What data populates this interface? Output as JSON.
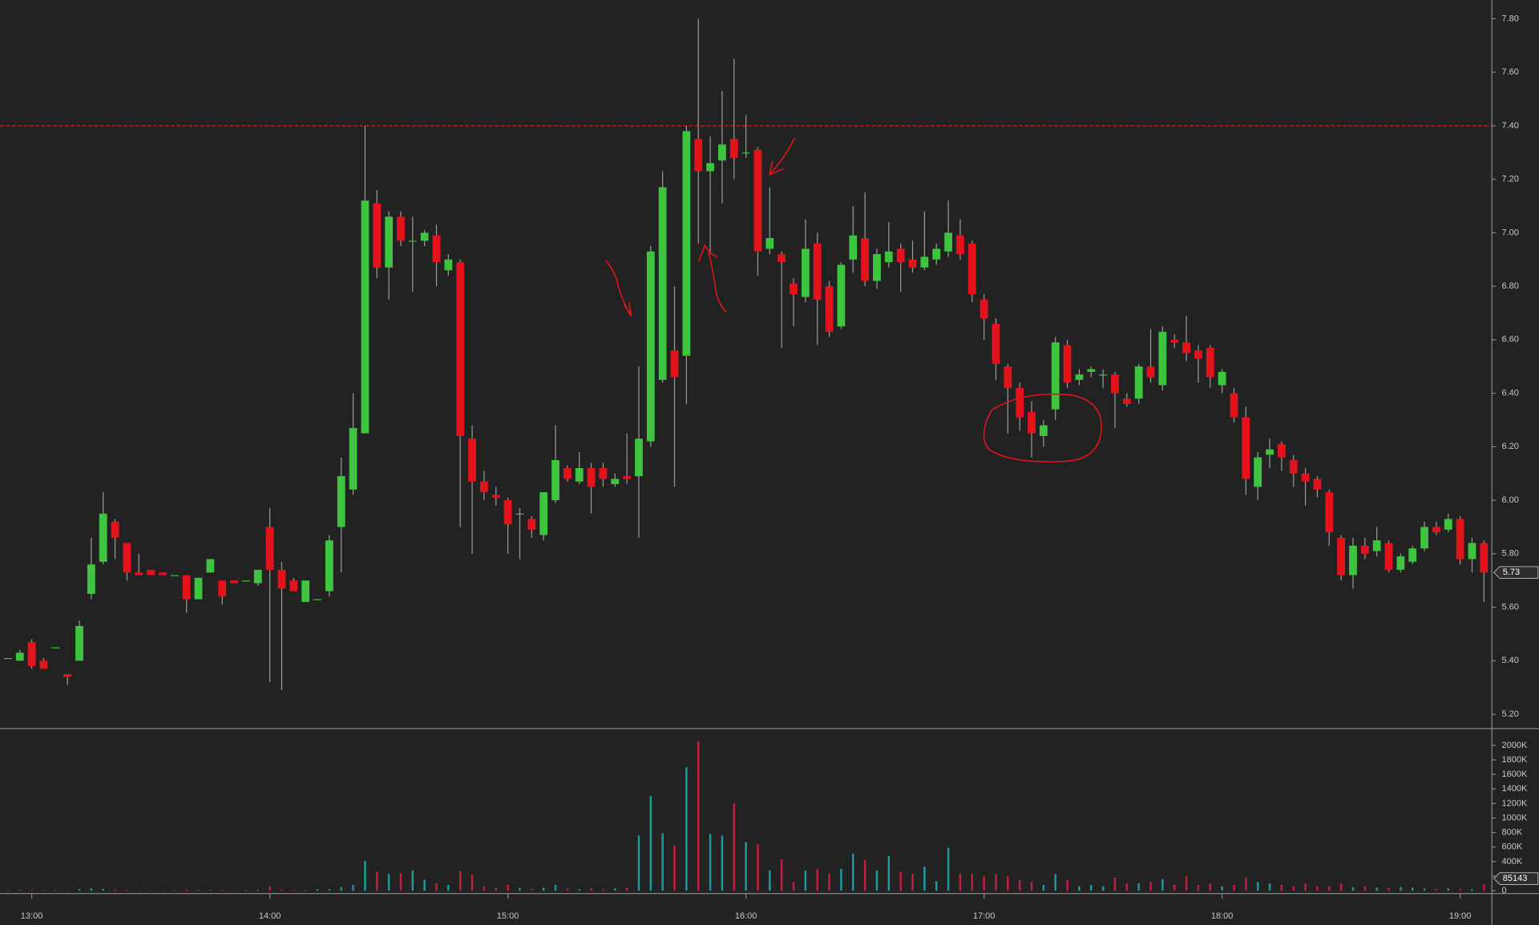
{
  "chart_data": {
    "type": "candlestick",
    "x": [
      774,
      777,
      780,
      783,
      786,
      789,
      792,
      795,
      798,
      801,
      804,
      807,
      810,
      813,
      816,
      819,
      822,
      825,
      828,
      831,
      834,
      837,
      840,
      843,
      846,
      849,
      852,
      855,
      858,
      861,
      864,
      867,
      870,
      873,
      876,
      879,
      882,
      885,
      888,
      891,
      894,
      897,
      900,
      903,
      906,
      909,
      912,
      915,
      918,
      921,
      924,
      927,
      930,
      933,
      936,
      939,
      942,
      945,
      948,
      951,
      954,
      957,
      960,
      963,
      966,
      969,
      972,
      975,
      978,
      981,
      984,
      987,
      990,
      993,
      996,
      999,
      1002,
      1005,
      1008,
      1011,
      1014,
      1017,
      1020,
      1023,
      1026,
      1029,
      1032,
      1035,
      1038,
      1041,
      1044,
      1047,
      1050,
      1053,
      1056,
      1059,
      1062,
      1065,
      1068,
      1071,
      1074,
      1077,
      1080,
      1083,
      1086,
      1089,
      1092,
      1095,
      1098,
      1101,
      1104,
      1107,
      1110,
      1113,
      1116,
      1119,
      1122,
      1125,
      1128,
      1131,
      1134,
      1137,
      1140,
      1143,
      1146
    ],
    "open": [
      5.41,
      5.4,
      5.47,
      5.4,
      5.45,
      5.35,
      5.4,
      5.65,
      5.77,
      5.92,
      5.84,
      5.73,
      5.74,
      5.73,
      5.72,
      5.72,
      5.63,
      5.73,
      5.7,
      5.7,
      5.7,
      5.69,
      5.9,
      5.74,
      5.7,
      5.62,
      5.63,
      5.66,
      5.9,
      6.04,
      6.25,
      7.11,
      6.87,
      7.06,
      6.97,
      6.97,
      6.99,
      6.86,
      6.89,
      6.23,
      6.07,
      6.02,
      6.0,
      5.95,
      5.93,
      5.87,
      6.0,
      6.12,
      6.07,
      6.12,
      6.12,
      6.06,
      6.09,
      6.09,
      6.22,
      6.45,
      6.56,
      6.54,
      7.35,
      7.23,
      7.27,
      7.35,
      7.3,
      7.31,
      6.94,
      6.92,
      6.81,
      6.76,
      6.96,
      6.8,
      6.65,
      6.9,
      6.98,
      6.82,
      6.89,
      6.94,
      6.9,
      6.87,
      6.9,
      6.93,
      6.99,
      6.96,
      6.75,
      6.66,
      6.5,
      6.42,
      6.33,
      6.24,
      6.34,
      6.58,
      6.45,
      6.48,
      6.47,
      6.47,
      6.38,
      6.38,
      6.5,
      6.43,
      6.6,
      6.59,
      6.56,
      6.57,
      6.43,
      6.4,
      6.31,
      6.05,
      6.17,
      6.21,
      6.15,
      6.1,
      6.08,
      6.03,
      5.86,
      5.72,
      5.83,
      5.81,
      5.84,
      5.74,
      5.77,
      5.82,
      5.9,
      5.89,
      5.93,
      5.78,
      5.84
    ],
    "high": [
      5.41,
      5.44,
      5.48,
      5.41,
      5.45,
      5.35,
      5.55,
      5.86,
      6.03,
      5.93,
      5.84,
      5.8,
      5.74,
      5.73,
      5.72,
      5.72,
      5.71,
      5.78,
      5.7,
      5.7,
      5.7,
      5.74,
      5.97,
      5.77,
      5.71,
      5.7,
      5.63,
      5.87,
      6.16,
      6.4,
      7.4,
      7.16,
      7.08,
      7.08,
      7.06,
      7.01,
      7.03,
      6.92,
      6.9,
      6.28,
      6.11,
      6.05,
      6.01,
      5.97,
      5.94,
      6.03,
      6.28,
      6.13,
      6.18,
      6.14,
      6.14,
      6.1,
      6.25,
      6.5,
      6.95,
      7.23,
      6.8,
      7.4,
      7.8,
      7.36,
      7.53,
      7.65,
      7.44,
      7.32,
      7.17,
      6.93,
      6.83,
      7.05,
      7.0,
      6.82,
      6.89,
      7.1,
      7.15,
      6.94,
      7.04,
      6.96,
      6.97,
      7.08,
      6.96,
      7.12,
      7.05,
      6.97,
      6.77,
      6.68,
      6.51,
      6.44,
      6.37,
      6.3,
      6.61,
      6.6,
      6.49,
      6.5,
      6.49,
      6.48,
      6.4,
      6.51,
      6.64,
      6.65,
      6.62,
      6.69,
      6.58,
      6.58,
      6.49,
      6.42,
      6.35,
      6.18,
      6.23,
      6.22,
      6.17,
      6.12,
      6.09,
      6.04,
      5.87,
      5.86,
      5.86,
      5.9,
      5.85,
      5.8,
      5.83,
      5.92,
      5.92,
      5.95,
      5.94,
      5.86,
      5.85
    ],
    "low": [
      5.41,
      5.4,
      5.37,
      5.37,
      5.45,
      5.31,
      5.4,
      5.63,
      5.76,
      5.78,
      5.7,
      5.72,
      5.72,
      5.72,
      5.72,
      5.58,
      5.63,
      5.73,
      5.61,
      5.69,
      5.7,
      5.68,
      5.32,
      5.29,
      5.66,
      5.62,
      5.63,
      5.64,
      5.73,
      6.02,
      6.25,
      6.83,
      6.75,
      6.95,
      6.78,
      6.95,
      6.8,
      6.84,
      5.9,
      5.8,
      6.0,
      5.98,
      5.8,
      5.78,
      5.86,
      5.85,
      5.99,
      6.07,
      6.06,
      5.95,
      6.05,
      6.05,
      6.06,
      5.86,
      6.2,
      6.44,
      6.05,
      6.36,
      6.96,
      6.92,
      7.11,
      7.2,
      7.28,
      6.84,
      6.92,
      6.57,
      6.65,
      6.74,
      6.58,
      6.61,
      6.64,
      6.85,
      6.8,
      6.79,
      6.87,
      6.78,
      6.85,
      6.86,
      6.88,
      6.91,
      6.9,
      6.74,
      6.6,
      6.45,
      6.25,
      6.26,
      6.16,
      6.2,
      6.3,
      6.42,
      6.43,
      6.46,
      6.42,
      6.27,
      6.35,
      6.36,
      6.44,
      6.41,
      6.57,
      6.52,
      6.44,
      6.42,
      6.4,
      6.29,
      6.02,
      6.0,
      6.12,
      6.11,
      6.05,
      5.98,
      6.01,
      5.83,
      5.7,
      5.67,
      5.78,
      5.79,
      5.73,
      5.73,
      5.76,
      5.81,
      5.87,
      5.88,
      5.76,
      5.73,
      5.62
    ],
    "close": [
      5.41,
      5.43,
      5.38,
      5.37,
      5.45,
      5.34,
      5.53,
      5.76,
      5.95,
      5.86,
      5.73,
      5.72,
      5.72,
      5.72,
      5.72,
      5.63,
      5.71,
      5.78,
      5.64,
      5.69,
      5.7,
      5.74,
      5.74,
      5.67,
      5.66,
      5.7,
      5.63,
      5.85,
      6.09,
      6.27,
      7.12,
      6.87,
      7.06,
      6.97,
      6.97,
      7.0,
      6.89,
      6.9,
      6.24,
      6.07,
      6.03,
      6.01,
      5.91,
      5.95,
      5.89,
      6.03,
      6.15,
      6.08,
      6.12,
      6.05,
      6.08,
      6.08,
      6.08,
      6.23,
      6.93,
      7.17,
      6.46,
      7.38,
      7.23,
      7.26,
      7.33,
      7.28,
      7.3,
      6.93,
      6.98,
      6.89,
      6.77,
      6.94,
      6.75,
      6.63,
      6.88,
      6.99,
      6.82,
      6.92,
      6.93,
      6.89,
      6.87,
      6.91,
      6.94,
      7.0,
      6.92,
      6.77,
      6.68,
      6.51,
      6.42,
      6.31,
      6.25,
      6.28,
      6.59,
      6.44,
      6.47,
      6.49,
      6.47,
      6.4,
      6.36,
      6.5,
      6.46,
      6.63,
      6.59,
      6.55,
      6.53,
      6.46,
      6.48,
      6.31,
      6.08,
      6.16,
      6.19,
      6.16,
      6.1,
      6.07,
      6.04,
      5.88,
      5.72,
      5.83,
      5.8,
      5.85,
      5.74,
      5.79,
      5.82,
      5.9,
      5.88,
      5.93,
      5.78,
      5.84,
      5.73
    ],
    "up_color": "#3ec43e",
    "down_color": "#e3121b",
    "wick_color": "#9a9a9a",
    "xlim": [
      772,
      1148
    ],
    "xticks": [
      {
        "value": 780,
        "label": "13:00"
      },
      {
        "value": 840,
        "label": "14:00"
      },
      {
        "value": 900,
        "label": "15:00"
      },
      {
        "value": 960,
        "label": "16:00"
      },
      {
        "value": 1020,
        "label": "17:00"
      },
      {
        "value": 1080,
        "label": "18:00"
      },
      {
        "value": 1140,
        "label": "19:00"
      }
    ],
    "ylim": [
      5.15,
      7.87
    ],
    "yticks": [
      {
        "value": 5.2,
        "label": "5.20"
      },
      {
        "value": 5.4,
        "label": "5.40"
      },
      {
        "value": 5.6,
        "label": "5.60"
      },
      {
        "value": 5.8,
        "label": "5.80"
      },
      {
        "value": 6.0,
        "label": "6.00"
      },
      {
        "value": 6.2,
        "label": "6.20"
      },
      {
        "value": 6.4,
        "label": "6.40"
      },
      {
        "value": 6.6,
        "label": "6.60"
      },
      {
        "value": 6.8,
        "label": "6.80"
      },
      {
        "value": 7.0,
        "label": "7.00"
      },
      {
        "value": 7.2,
        "label": "7.20"
      },
      {
        "value": 7.4,
        "label": "7.40"
      },
      {
        "value": 7.6,
        "label": "7.60"
      },
      {
        "value": 7.8,
        "label": "7.80"
      }
    ],
    "hline": {
      "value": 7.4,
      "color": "#d41a1a"
    },
    "last_price": {
      "value": 5.73,
      "label": "5.73"
    },
    "volume": {
      "values": [
        5,
        10,
        15,
        10,
        5,
        5,
        20,
        30,
        25,
        15,
        10,
        5,
        5,
        5,
        5,
        15,
        10,
        10,
        10,
        5,
        5,
        10,
        60,
        15,
        10,
        5,
        20,
        20,
        50,
        80,
        410,
        260,
        230,
        240,
        280,
        150,
        100,
        80,
        270,
        220,
        60,
        40,
        80,
        40,
        20,
        40,
        80,
        30,
        20,
        30,
        20,
        30,
        40,
        760,
        1300,
        790,
        620,
        1700,
        2050,
        780,
        760,
        1200,
        670,
        640,
        280,
        430,
        120,
        280,
        300,
        230,
        300,
        510,
        420,
        280,
        480,
        260,
        230,
        330,
        130,
        590,
        230,
        230,
        200,
        230,
        200,
        150,
        120,
        80,
        230,
        150,
        60,
        80,
        60,
        180,
        100,
        100,
        120,
        160,
        80,
        200,
        80,
        100,
        60,
        80,
        180,
        120,
        100,
        80,
        60,
        100,
        60,
        60,
        100,
        50,
        60,
        40,
        40,
        50,
        40,
        30,
        20,
        30,
        20,
        20,
        85.143
      ],
      "up_color": "#1c9c9c",
      "down_color": "#c41f3c",
      "ylim": [
        -40,
        2190
      ],
      "yticks": [
        0,
        {
          "value": 200,
          "label": "200K"
        },
        {
          "value": 400,
          "label": "400K"
        },
        {
          "value": 600,
          "label": "600K"
        },
        {
          "value": 800,
          "label": "800K"
        },
        {
          "value": 1000,
          "label": "1000K"
        },
        {
          "value": 1200,
          "label": "1200K"
        },
        {
          "value": 1400,
          "label": "1400K"
        },
        {
          "value": 1600,
          "label": "1600K"
        },
        {
          "value": 1800,
          "label": "1800K"
        },
        {
          "value": 2000,
          "label": "2000K"
        }
      ],
      "last": {
        "value": 85.143,
        "label": "85143"
      }
    }
  }
}
